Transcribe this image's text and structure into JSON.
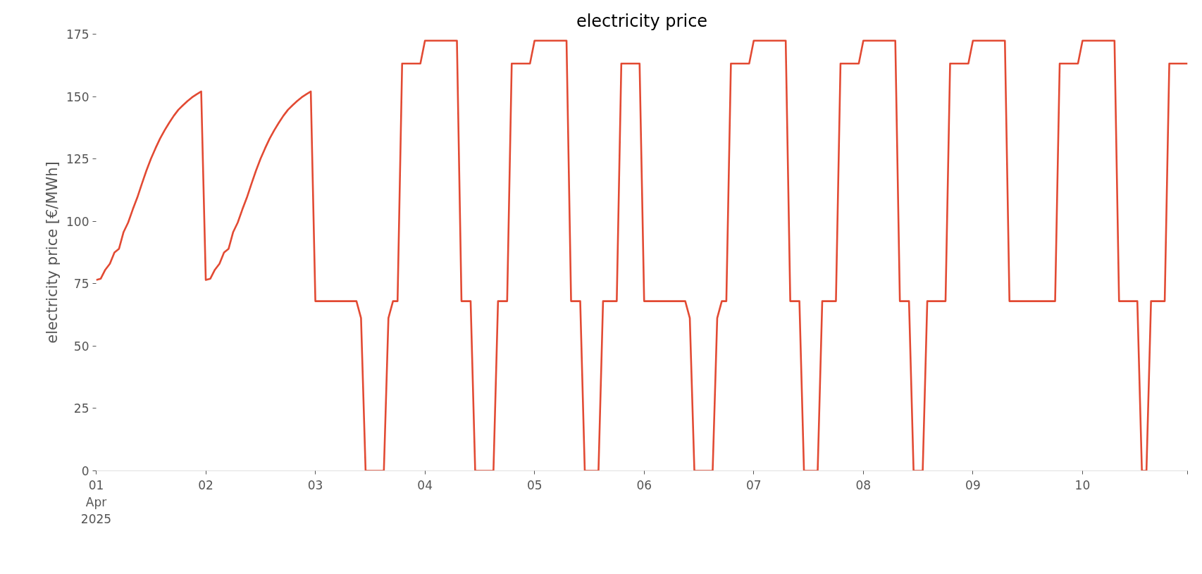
{
  "chart_data": {
    "type": "line",
    "title": "electricity price",
    "ylabel": "electricity price [€/MWh]",
    "x": [
      "2025-04-01T00:00",
      "2025-04-01T01:00",
      "2025-04-01T02:00",
      "2025-04-01T03:00",
      "2025-04-01T04:00",
      "2025-04-01T05:00",
      "2025-04-01T06:00",
      "2025-04-01T07:00",
      "2025-04-01T08:00",
      "2025-04-01T09:00",
      "2025-04-01T10:00",
      "2025-04-01T11:00",
      "2025-04-01T12:00",
      "2025-04-01T13:00",
      "2025-04-01T14:00",
      "2025-04-01T15:00",
      "2025-04-01T16:00",
      "2025-04-01T17:00",
      "2025-04-01T18:00",
      "2025-04-01T19:00",
      "2025-04-01T20:00",
      "2025-04-01T21:00",
      "2025-04-01T22:00",
      "2025-04-01T23:00",
      "2025-04-02T00:00",
      "2025-04-02T01:00",
      "2025-04-02T02:00",
      "2025-04-02T03:00",
      "2025-04-02T04:00",
      "2025-04-02T05:00",
      "2025-04-02T06:00",
      "2025-04-02T07:00",
      "2025-04-02T08:00",
      "2025-04-02T09:00",
      "2025-04-02T10:00",
      "2025-04-02T11:00",
      "2025-04-02T12:00",
      "2025-04-02T13:00",
      "2025-04-02T14:00",
      "2025-04-02T15:00",
      "2025-04-02T16:00",
      "2025-04-02T17:00",
      "2025-04-02T18:00",
      "2025-04-02T19:00",
      "2025-04-02T20:00",
      "2025-04-02T21:00",
      "2025-04-02T22:00",
      "2025-04-02T23:00",
      "2025-04-03T00:00",
      "2025-04-03T09:00",
      "2025-04-03T10:00",
      "2025-04-03T11:00",
      "2025-04-03T15:00",
      "2025-04-03T16:00",
      "2025-04-03T17:00",
      "2025-04-03T18:00",
      "2025-04-03T19:00",
      "2025-04-03T23:00",
      "2025-04-04T00:00",
      "2025-04-04T07:00",
      "2025-04-04T08:00",
      "2025-04-04T10:00",
      "2025-04-04T11:00",
      "2025-04-04T15:00",
      "2025-04-04T16:00",
      "2025-04-04T18:00",
      "2025-04-04T19:00",
      "2025-04-04T23:00",
      "2025-04-05T00:00",
      "2025-04-05T07:00",
      "2025-04-05T08:00",
      "2025-04-05T10:00",
      "2025-04-05T11:00",
      "2025-04-05T14:00",
      "2025-04-05T15:00",
      "2025-04-05T18:00",
      "2025-04-05T19:00",
      "2025-04-05T23:00",
      "2025-04-06T00:00",
      "2025-04-06T09:00",
      "2025-04-06T10:00",
      "2025-04-06T11:00",
      "2025-04-06T15:00",
      "2025-04-06T16:00",
      "2025-04-06T17:00",
      "2025-04-06T18:00",
      "2025-04-06T19:00",
      "2025-04-06T23:00",
      "2025-04-07T00:00",
      "2025-04-07T07:00",
      "2025-04-07T08:00",
      "2025-04-07T10:00",
      "2025-04-07T11:00",
      "2025-04-07T14:00",
      "2025-04-07T15:00",
      "2025-04-07T18:00",
      "2025-04-07T19:00",
      "2025-04-07T23:00",
      "2025-04-08T00:00",
      "2025-04-08T07:00",
      "2025-04-08T08:00",
      "2025-04-08T10:00",
      "2025-04-08T11:00",
      "2025-04-08T13:00",
      "2025-04-08T14:00",
      "2025-04-08T18:00",
      "2025-04-08T19:00",
      "2025-04-08T23:00",
      "2025-04-09T00:00",
      "2025-04-09T07:00",
      "2025-04-09T08:00",
      "2025-04-09T18:00",
      "2025-04-09T19:00",
      "2025-04-09T23:00",
      "2025-04-10T00:00",
      "2025-04-10T07:00",
      "2025-04-10T08:00",
      "2025-04-10T12:00",
      "2025-04-10T13:00",
      "2025-04-10T14:00",
      "2025-04-10T15:00",
      "2025-04-10T18:00",
      "2025-04-10T19:00",
      "2025-04-10T23:00"
    ],
    "series": [
      {
        "color": "#e24a33",
        "values": [
          76.5,
          77,
          80.6,
          83,
          87.5,
          89,
          95.7,
          99.5,
          104.7,
          109.5,
          115,
          120.3,
          125.1,
          129.3,
          133.2,
          136.5,
          139.5,
          142.3,
          144.7,
          146.5,
          148.2,
          149.7,
          150.9,
          152,
          76.5,
          77,
          80.6,
          83,
          87.5,
          89,
          95.7,
          99.5,
          104.7,
          109.5,
          115,
          120.3,
          125.1,
          129.3,
          133.2,
          136.5,
          139.5,
          142.3,
          144.7,
          146.5,
          148.2,
          149.7,
          150.9,
          152,
          68,
          68,
          61.2,
          0,
          0,
          61.2,
          68,
          68,
          163.2,
          163.2,
          172.4,
          172.4,
          68,
          68,
          0,
          0,
          68,
          68,
          163.2,
          163.2,
          172.4,
          172.4,
          68,
          68,
          0,
          0,
          68,
          68,
          163.2,
          163.2,
          68,
          68,
          61.2,
          0,
          0,
          61.2,
          68,
          68,
          163.2,
          163.2,
          172.4,
          172.4,
          68,
          68,
          0,
          0,
          68,
          68,
          163.2,
          163.2,
          172.4,
          172.4,
          68,
          68,
          0,
          0,
          68,
          68,
          163.2,
          163.2,
          172.4,
          172.4,
          68,
          68,
          163.2,
          163.2,
          172.4,
          172.4,
          68,
          68,
          0,
          0,
          68,
          68,
          163.2,
          163.2
        ]
      }
    ],
    "xlim": [
      "2025-04-01T00:00",
      "2025-04-10T23:00"
    ],
    "ylim": [
      0,
      175
    ],
    "xticks": [
      {
        "value": "2025-04-01",
        "label": "01\nApr\n2025"
      },
      {
        "value": "2025-04-02",
        "label": "02"
      },
      {
        "value": "2025-04-03",
        "label": "03"
      },
      {
        "value": "2025-04-04",
        "label": "04"
      },
      {
        "value": "2025-04-05",
        "label": "05"
      },
      {
        "value": "2025-04-06",
        "label": "06"
      },
      {
        "value": "2025-04-07",
        "label": "07"
      },
      {
        "value": "2025-04-08",
        "label": "08"
      },
      {
        "value": "2025-04-09",
        "label": "09"
      },
      {
        "value": "2025-04-10",
        "label": "10"
      },
      {
        "value": "2025-04-10T23:00",
        "label": null
      }
    ],
    "yticks": [
      0,
      25,
      50,
      75,
      100,
      125,
      150,
      175
    ]
  }
}
